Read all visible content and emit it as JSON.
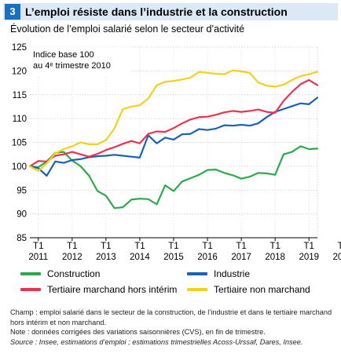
{
  "header": {
    "number": "3",
    "title": "L’emploi résiste dans l’industrie et la construction",
    "subtitle": "Évolution de l’emploi salarié selon le secteur d’activité"
  },
  "chart_data": {
    "type": "line",
    "index_note_line1": "Indice base 100",
    "index_note_line2": "au 4ᵉ trimestre 2010",
    "ylim": [
      85,
      125
    ],
    "yticks": [
      "85",
      "90",
      "95",
      "100",
      "105",
      "110",
      "115",
      "120",
      "125"
    ],
    "grid": true,
    "x_start": "2010 T4",
    "x_end": "2020 T1",
    "x_ticks": [
      {
        "quarter": "T1",
        "year": "2011"
      },
      {
        "quarter": "T1",
        "year": "2012"
      },
      {
        "quarter": "T1",
        "year": "2013"
      },
      {
        "quarter": "T1",
        "year": "2014"
      },
      {
        "quarter": "T1",
        "year": "2015"
      },
      {
        "quarter": "T1",
        "year": "2016"
      },
      {
        "quarter": "T1",
        "year": "2017"
      },
      {
        "quarter": "T1",
        "year": "2018"
      },
      {
        "quarter": "T1",
        "year": "2019"
      },
      {
        "quarter": "T1",
        "year": "2020"
      }
    ],
    "legend_position": "bottom",
    "series": [
      {
        "name": "Construction",
        "color": "#2ea84a",
        "values": [
          100.0,
          99.8,
          101.0,
          102.8,
          103.0,
          101.2,
          100.0,
          98.0,
          94.8,
          93.8,
          91.2,
          91.4,
          93.0,
          93.2,
          93.1,
          92.0,
          96.0,
          94.8,
          96.8,
          97.5,
          98.2,
          99.2,
          99.3,
          98.6,
          98.1,
          97.4,
          97.8,
          98.6,
          98.5,
          98.2,
          102.5,
          103.0,
          104.2,
          103.6,
          103.7
        ]
      },
      {
        "name": "Industrie",
        "color": "#1a5fb8",
        "values": [
          100.0,
          99.6,
          98.0,
          101.0,
          100.7,
          101.3,
          101.5,
          101.9,
          102.1,
          102.2,
          102.4,
          102.2,
          102.0,
          101.8,
          106.5,
          104.8,
          106.0,
          105.6,
          106.7,
          106.8,
          107.8,
          107.6,
          107.9,
          108.6,
          108.5,
          108.7,
          108.5,
          109.0,
          110.3,
          111.4,
          112.0,
          112.6,
          113.2,
          113.0,
          114.4
        ]
      },
      {
        "name": "Tertiaire marchand hors intérim",
        "color": "#e8344e",
        "values": [
          100.0,
          101.1,
          101.0,
          102.2,
          102.5,
          103.0,
          102.5,
          102.0,
          102.6,
          103.4,
          104.0,
          104.7,
          105.3,
          104.8,
          106.8,
          107.3,
          107.2,
          108.0,
          109.0,
          109.8,
          110.3,
          110.4,
          110.8,
          111.3,
          111.6,
          111.4,
          111.6,
          111.9,
          111.4,
          111.2,
          113.7,
          115.6,
          117.2,
          118.1,
          117.0
        ]
      },
      {
        "name": "Tertiaire non marchand",
        "color": "#f5cf1e",
        "values": [
          100.0,
          99.0,
          100.6,
          102.7,
          103.6,
          104.2,
          105.0,
          104.6,
          104.6,
          105.5,
          107.9,
          112.0,
          112.5,
          112.8,
          114.2,
          117.0,
          117.7,
          117.9,
          118.2,
          118.6,
          119.8,
          119.6,
          119.4,
          119.3,
          120.1,
          119.9,
          119.6,
          117.6,
          116.9,
          116.7,
          117.1,
          118.1,
          118.9,
          119.3,
          119.8
        ]
      }
    ]
  },
  "notes": {
    "line1": "Champ : emploi salarié dans le secteur de la construction, de l’industrie et dans le tertiaire marchand hors intérim et non marchand.",
    "line2": "Note : données corrigées des variations saisonnières (CVS), en fin de trimestre.",
    "line3": "Source : Insee, estimations d’emploi ; estimations trimestrielles Acoss-Urssaf, Dares, Insee."
  }
}
